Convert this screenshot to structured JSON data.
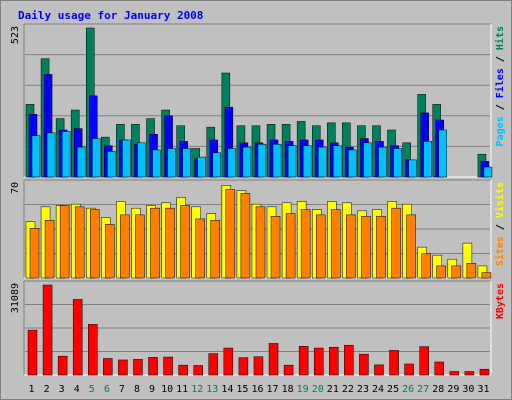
{
  "chart_data": {
    "type": "bar",
    "title": "Daily usage for January 2008",
    "days": [
      "1",
      "2",
      "3",
      "4",
      "5",
      "6",
      "7",
      "8",
      "9",
      "10",
      "11",
      "12",
      "13",
      "14",
      "15",
      "16",
      "17",
      "18",
      "19",
      "20",
      "21",
      "22",
      "23",
      "24",
      "25",
      "26",
      "27",
      "28",
      "29",
      "30",
      "31"
    ],
    "weekend_days": [
      "5",
      "6",
      "12",
      "13",
      "19",
      "20",
      "26",
      "27"
    ],
    "panels": [
      {
        "name": "hits_panel",
        "ymax": 523,
        "ymax_label": "523",
        "legend": [
          "Pages",
          "Files",
          "Hits"
        ],
        "legend_separator": " / ",
        "series": [
          {
            "name": "Hits",
            "color": "#00805c",
            "values": [
              255,
              415,
              205,
              235,
              523,
              140,
              185,
              185,
              205,
              235,
              180,
              100,
              175,
              365,
              180,
              180,
              185,
              185,
              195,
              180,
              190,
              190,
              180,
              180,
              165,
              120,
              290,
              255,
              0,
              0,
              80
            ]
          },
          {
            "name": "Files",
            "color": "#0000ff",
            "values": [
              220,
              360,
              165,
              170,
              285,
              110,
              130,
              115,
              150,
              215,
              125,
              65,
              130,
              245,
              120,
              120,
              130,
              125,
              130,
              130,
              120,
              105,
              135,
              125,
              110,
              60,
              225,
              200,
              0,
              0,
              55
            ]
          },
          {
            "name": "Pages",
            "color": "#00c0ff",
            "values": [
              145,
              155,
              160,
              105,
              135,
              90,
              130,
              120,
              95,
              100,
              100,
              70,
              85,
              100,
              105,
              115,
              115,
              110,
              110,
              105,
              110,
              95,
              120,
              105,
              100,
              60,
              125,
              165,
              0,
              0,
              35
            ]
          }
        ]
      },
      {
        "name": "visits_panel",
        "ymax": 70,
        "ymax_label": "70",
        "legend": [
          "Sites",
          "Visits"
        ],
        "legend_separator": " / ",
        "series": [
          {
            "name": "Visits",
            "color": "#ffff00",
            "values": [
              42,
              53,
              54,
              55,
              52,
              45,
              57,
              52,
              54,
              56,
              60,
              53,
              48,
              69,
              65,
              55,
              53,
              56,
              57,
              51,
              57,
              56,
              50,
              51,
              57,
              55,
              23,
              17,
              14,
              26,
              9
            ]
          },
          {
            "name": "Sites",
            "color": "#ff8000",
            "values": [
              37,
              43,
              54,
              53,
              51,
              40,
              47,
              47,
              52,
              52,
              54,
              44,
              43,
              66,
              63,
              53,
              46,
              48,
              51,
              47,
              51,
              47,
              46,
              46,
              52,
              47,
              18,
              9,
              9,
              11,
              4
            ]
          }
        ]
      },
      {
        "name": "kbytes_panel",
        "ymax": 31089,
        "ymax_label": "31089",
        "legend": [
          "KBytes"
        ],
        "legend_separator": "",
        "series": [
          {
            "name": "KBytes",
            "color": "#ff0000",
            "values": [
              15500,
              31089,
              6500,
              26100,
              17500,
              5700,
              5200,
              5400,
              6100,
              6200,
              3400,
              3300,
              7400,
              9300,
              6000,
              6300,
              10900,
              3400,
              9900,
              9300,
              9600,
              10300,
              7200,
              3500,
              8500,
              3800,
              9800,
              4500,
              1200,
              1200,
              2000
            ]
          }
        ]
      }
    ],
    "xlabel": "",
    "ylabel": "",
    "grid": true
  },
  "colors": {
    "background": "#c0c0c0",
    "panel_background": "#c0c0c0",
    "title": "#0000ff",
    "grid": "#808080",
    "weekday_label": "#000000",
    "weekend_label": "#00805c",
    "frame_light": "#ffffff",
    "frame_dark": "#808080"
  }
}
